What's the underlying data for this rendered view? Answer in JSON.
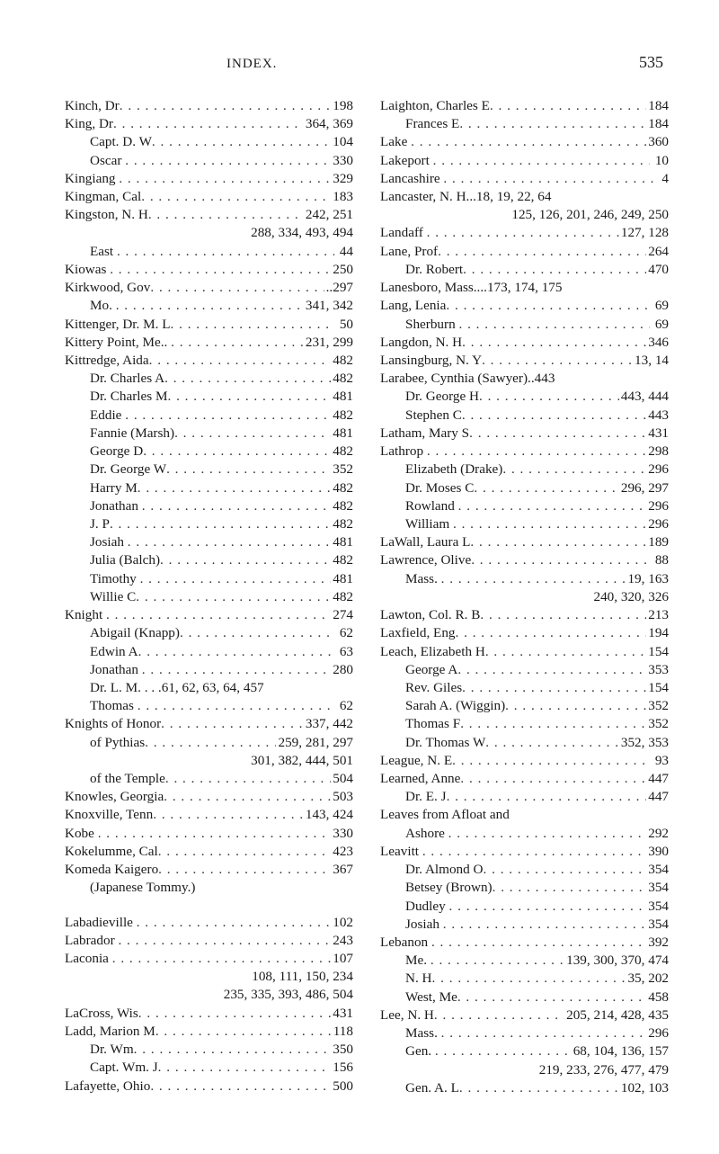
{
  "header": {
    "title": "INDEX.",
    "page": "535"
  },
  "dots": ". . . . . . . . . . . . . . . . . . . . . . . . . . . . . . . . . . . . . . . .",
  "entries": [
    {
      "t": "line",
      "indent": 0,
      "name": "Kinch, Dr",
      "pages": "198"
    },
    {
      "t": "line",
      "indent": 0,
      "name": "King, Dr",
      "pages": "364, 369"
    },
    {
      "t": "line",
      "indent": 1,
      "name": "Capt. D. W",
      "pages": "104"
    },
    {
      "t": "line",
      "indent": 1,
      "name": "Oscar ",
      "pages": "330"
    },
    {
      "t": "line",
      "indent": 0,
      "name": "Kingiang ",
      "pages": "329"
    },
    {
      "t": "line",
      "indent": 0,
      "name": "Kingman, Cal",
      "pages": "183"
    },
    {
      "t": "line",
      "indent": 0,
      "name": "Kingston, N. H",
      "pages": "242, 251"
    },
    {
      "t": "cont",
      "text": "288, 334, 493, 494"
    },
    {
      "t": "line",
      "indent": 1,
      "name": "East ",
      "pages": " 44"
    },
    {
      "t": "line",
      "indent": 0,
      "name": "Kiowas ",
      "pages": "250"
    },
    {
      "t": "line",
      "indent": 0,
      "name": "Kirkwood, Gov",
      "pages": "..297"
    },
    {
      "t": "line",
      "indent": 1,
      "name": "Mo. ",
      "pages": "341, 342"
    },
    {
      "t": "line",
      "indent": 0,
      "name": "Kittenger, Dr. M. L",
      "pages": " 50"
    },
    {
      "t": "line",
      "indent": 0,
      "name": "Kittery Point, Me.. ",
      "pages": "231, 299"
    },
    {
      "t": "line",
      "indent": 0,
      "name": "Kittredge, Aida",
      "pages": "482"
    },
    {
      "t": "line",
      "indent": 1,
      "name": "Dr. Charles A",
      "pages": "482"
    },
    {
      "t": "line",
      "indent": 1,
      "name": "Dr. Charles M",
      "pages": "481"
    },
    {
      "t": "line",
      "indent": 1,
      "name": "Eddie ",
      "pages": "482"
    },
    {
      "t": "line",
      "indent": 1,
      "name": "Fannie (Marsh)",
      "pages": "481"
    },
    {
      "t": "line",
      "indent": 1,
      "name": "George D",
      "pages": "482"
    },
    {
      "t": "line",
      "indent": 1,
      "name": "Dr. George W",
      "pages": "352"
    },
    {
      "t": "line",
      "indent": 1,
      "name": "Harry M",
      "pages": "482"
    },
    {
      "t": "line",
      "indent": 1,
      "name": "Jonathan ",
      "pages": "482"
    },
    {
      "t": "line",
      "indent": 1,
      "name": "J. P",
      "pages": "482"
    },
    {
      "t": "line",
      "indent": 1,
      "name": "Josiah ",
      "pages": "481"
    },
    {
      "t": "line",
      "indent": 1,
      "name": "Julia (Balch)",
      "pages": "482"
    },
    {
      "t": "line",
      "indent": 1,
      "name": "Timothy ",
      "pages": "481"
    },
    {
      "t": "line",
      "indent": 1,
      "name": "Willie C",
      "pages": "482"
    },
    {
      "t": "line",
      "indent": 0,
      "name": "Knight ",
      "pages": "274"
    },
    {
      "t": "line",
      "indent": 1,
      "name": "Abigail (Knapp)",
      "pages": " 62"
    },
    {
      "t": "line",
      "indent": 1,
      "name": "Edwin A",
      "pages": " 63"
    },
    {
      "t": "line",
      "indent": 1,
      "name": "Jonathan ",
      "pages": "280"
    },
    {
      "t": "line",
      "indent": 1,
      "name": "Dr. L. M. . . .61, 62, 63, 64, 457",
      "pages": "",
      "nodots": true
    },
    {
      "t": "line",
      "indent": 1,
      "name": "Thomas ",
      "pages": " 62"
    },
    {
      "t": "line",
      "indent": 0,
      "name": "Knights of Honor",
      "pages": "337, 442"
    },
    {
      "t": "line",
      "indent": 1,
      "name": "of Pythias",
      "pages": "259, 281, 297"
    },
    {
      "t": "cont",
      "text": "301, 382, 444, 501"
    },
    {
      "t": "line",
      "indent": 1,
      "name": "of the Temple",
      "pages": "504"
    },
    {
      "t": "line",
      "indent": 0,
      "name": "Knowles, Georgia",
      "pages": "503"
    },
    {
      "t": "line",
      "indent": 0,
      "name": "Knoxville, Tenn",
      "pages": "143, 424"
    },
    {
      "t": "line",
      "indent": 0,
      "name": "Kobe ",
      "pages": "330"
    },
    {
      "t": "line",
      "indent": 0,
      "name": "Kokelumme, Cal",
      "pages": "423"
    },
    {
      "t": "line",
      "indent": 0,
      "name": "Komeda Kaigero",
      "pages": "367"
    },
    {
      "t": "line",
      "indent": 1,
      "name": "(Japanese Tommy.)",
      "pages": "",
      "nodots": true
    },
    {
      "t": "blank"
    },
    {
      "t": "line",
      "indent": 0,
      "name": "Labadieville ",
      "pages": "102"
    },
    {
      "t": "line",
      "indent": 0,
      "name": "Labrador ",
      "pages": "243"
    },
    {
      "t": "line",
      "indent": 0,
      "name": "Laconia ",
      "pages": "107"
    },
    {
      "t": "cont",
      "text": "108, 111, 150, 234"
    },
    {
      "t": "cont",
      "text": "235, 335, 393, 486, 504"
    },
    {
      "t": "line",
      "indent": 0,
      "name": "LaCross, Wis",
      "pages": "431"
    },
    {
      "t": "line",
      "indent": 0,
      "name": "Ladd, Marion M",
      "pages": "118"
    },
    {
      "t": "line",
      "indent": 1,
      "name": "Dr. Wm",
      "pages": "350"
    },
    {
      "t": "line",
      "indent": 1,
      "name": "Capt. Wm. J",
      "pages": "156"
    },
    {
      "t": "line",
      "indent": 0,
      "name": "Lafayette, Ohio",
      "pages": "500"
    },
    {
      "t": "line",
      "indent": 0,
      "name": "Laighton, Charles E",
      "pages": "184"
    },
    {
      "t": "line",
      "indent": 1,
      "name": "Frances E",
      "pages": "184"
    },
    {
      "t": "line",
      "indent": 0,
      "name": "Lake ",
      "pages": "360"
    },
    {
      "t": "line",
      "indent": 0,
      "name": "Lakeport ",
      "pages": " 10"
    },
    {
      "t": "line",
      "indent": 0,
      "name": "Lancashire ",
      "pages": " 4"
    },
    {
      "t": "line",
      "indent": 0,
      "name": "Lancaster, N. H...18, 19, 22, 64",
      "pages": "",
      "nodots": true
    },
    {
      "t": "cont",
      "text": "125, 126, 201, 246, 249, 250"
    },
    {
      "t": "line",
      "indent": 0,
      "name": "Landaff ",
      "pages": "127, 128"
    },
    {
      "t": "line",
      "indent": 0,
      "name": "Lane, Prof",
      "pages": "264"
    },
    {
      "t": "line",
      "indent": 1,
      "name": "Dr. Robert",
      "pages": "470"
    },
    {
      "t": "line",
      "indent": 0,
      "name": "Lanesboro, Mass....173, 174, 175",
      "pages": "",
      "nodots": true
    },
    {
      "t": "line",
      "indent": 0,
      "name": "Lang, Lenia",
      "pages": " 69"
    },
    {
      "t": "line",
      "indent": 1,
      "name": "Sherburn ",
      "pages": " 69"
    },
    {
      "t": "line",
      "indent": 0,
      "name": "Langdon, N. H",
      "pages": "346"
    },
    {
      "t": "line",
      "indent": 0,
      "name": "Lansingburg, N. Y",
      "pages": "13, 14"
    },
    {
      "t": "line",
      "indent": 0,
      "name": "Larabee, Cynthia (Sawyer)..443",
      "pages": "",
      "nodots": true
    },
    {
      "t": "line",
      "indent": 1,
      "name": "Dr. George H",
      "pages": "443, 444"
    },
    {
      "t": "line",
      "indent": 1,
      "name": "Stephen C",
      "pages": "443"
    },
    {
      "t": "line",
      "indent": 0,
      "name": "Latham, Mary S",
      "pages": "431"
    },
    {
      "t": "line",
      "indent": 0,
      "name": "Lathrop ",
      "pages": "298"
    },
    {
      "t": "line",
      "indent": 1,
      "name": "Elizabeth (Drake)",
      "pages": "296"
    },
    {
      "t": "line",
      "indent": 1,
      "name": "Dr. Moses C",
      "pages": "296, 297"
    },
    {
      "t": "line",
      "indent": 1,
      "name": "Rowland ",
      "pages": "296"
    },
    {
      "t": "line",
      "indent": 1,
      "name": "William ",
      "pages": "296"
    },
    {
      "t": "line",
      "indent": 0,
      "name": "LaWall, Laura L",
      "pages": "189"
    },
    {
      "t": "line",
      "indent": 0,
      "name": "Lawrence, Olive",
      "pages": " 88"
    },
    {
      "t": "line",
      "indent": 1,
      "name": "Mass. ",
      "pages": "19, 163"
    },
    {
      "t": "cont",
      "text": "240, 320, 326"
    },
    {
      "t": "line",
      "indent": 0,
      "name": "Lawton, Col. R. B",
      "pages": "213"
    },
    {
      "t": "line",
      "indent": 0,
      "name": "Laxfield, Eng",
      "pages": "194"
    },
    {
      "t": "line",
      "indent": 0,
      "name": "Leach, Elizabeth H",
      "pages": "154"
    },
    {
      "t": "line",
      "indent": 1,
      "name": "George A",
      "pages": "353"
    },
    {
      "t": "line",
      "indent": 1,
      "name": "Rev. Giles",
      "pages": "154"
    },
    {
      "t": "line",
      "indent": 1,
      "name": "Sarah A. (Wiggin)",
      "pages": "352"
    },
    {
      "t": "line",
      "indent": 1,
      "name": "Thomas F",
      "pages": "352"
    },
    {
      "t": "line",
      "indent": 1,
      "name": "Dr. Thomas W",
      "pages": "352, 353"
    },
    {
      "t": "line",
      "indent": 0,
      "name": "League, N. E",
      "pages": " 93"
    },
    {
      "t": "line",
      "indent": 0,
      "name": "Learned, Anne",
      "pages": "447"
    },
    {
      "t": "line",
      "indent": 1,
      "name": "Dr. E. J",
      "pages": "447"
    },
    {
      "t": "line",
      "indent": 0,
      "name": "Leaves from Afloat and",
      "pages": "",
      "nodots": true
    },
    {
      "t": "line",
      "indent": 1,
      "name": "Ashore ",
      "pages": "292"
    },
    {
      "t": "line",
      "indent": 0,
      "name": "Leavitt ",
      "pages": "390"
    },
    {
      "t": "line",
      "indent": 1,
      "name": "Dr. Almond O",
      "pages": "354"
    },
    {
      "t": "line",
      "indent": 1,
      "name": "Betsey (Brown)",
      "pages": "354"
    },
    {
      "t": "line",
      "indent": 1,
      "name": "Dudley ",
      "pages": "354"
    },
    {
      "t": "line",
      "indent": 1,
      "name": "Josiah ",
      "pages": "354"
    },
    {
      "t": "line",
      "indent": 0,
      "name": "Lebanon ",
      "pages": "392"
    },
    {
      "t": "line",
      "indent": 1,
      "name": "Me. ",
      "pages": "139, 300, 370, 474"
    },
    {
      "t": "line",
      "indent": 1,
      "name": "N. H",
      "pages": "35, 202"
    },
    {
      "t": "line",
      "indent": 1,
      "name": "West, Me",
      "pages": "458"
    },
    {
      "t": "line",
      "indent": 0,
      "name": "Lee, N. H",
      "pages": "205, 214, 428, 435"
    },
    {
      "t": "line",
      "indent": 1,
      "name": "Mass. ",
      "pages": "296"
    },
    {
      "t": "line",
      "indent": 1,
      "name": "Gen. ",
      "pages": "68, 104, 136, 157"
    },
    {
      "t": "cont",
      "text": "219, 233, 276, 477, 479"
    },
    {
      "t": "line",
      "indent": 1,
      "name": "Gen. A. L",
      "pages": "102, 103"
    }
  ]
}
